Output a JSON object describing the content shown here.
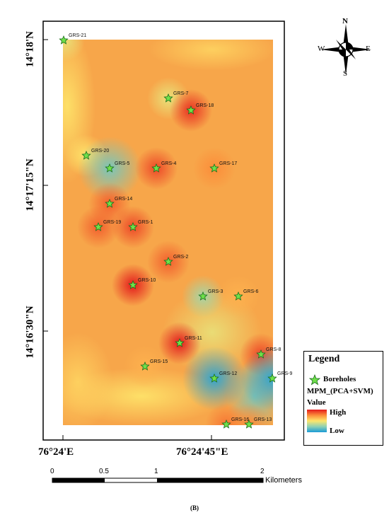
{
  "map": {
    "boreholes": [
      {
        "id": "GRS-21",
        "value": 0.45
      },
      {
        "id": "GRS-7",
        "value": 0.45
      },
      {
        "id": "GRS-18",
        "value": 0.95
      },
      {
        "id": "GRS-20",
        "value": 0.5
      },
      {
        "id": "GRS-5",
        "value": 0.2
      },
      {
        "id": "GRS-4",
        "value": 0.9
      },
      {
        "id": "GRS-17",
        "value": 0.75
      },
      {
        "id": "GRS-14",
        "value": 0.85
      },
      {
        "id": "GRS-19",
        "value": 0.85
      },
      {
        "id": "GRS-1",
        "value": 0.9
      },
      {
        "id": "GRS-2",
        "value": 0.85
      },
      {
        "id": "GRS-10",
        "value": 1.0
      },
      {
        "id": "GRS-3",
        "value": 0.3
      },
      {
        "id": "GRS-6",
        "value": 0.65
      },
      {
        "id": "GRS-11",
        "value": 1.0
      },
      {
        "id": "GRS-8",
        "value": 0.9
      },
      {
        "id": "GRS-15",
        "value": 0.65
      },
      {
        "id": "GRS-12",
        "value": 0.05
      },
      {
        "id": "GRS-9",
        "value": 0.05
      },
      {
        "id": "GRS-16",
        "value": 0.8
      },
      {
        "id": "GRS-13",
        "value": 0.75
      }
    ],
    "lat_labels": [
      "14°18'N",
      "14°17'15\"N",
      "14°16'30\"N"
    ],
    "lon_labels": [
      "76°24'E",
      "76°24'45\"E"
    ]
  },
  "compass": {
    "n": "N",
    "s": "S",
    "e": "E",
    "w": "W"
  },
  "legend": {
    "title": "Legend",
    "boreholes_label": "Boreholes",
    "layer_name": "MPM_(PCA+SVM)",
    "value_label": "Value",
    "high_label": "High",
    "low_label": "Low",
    "colors": {
      "high": "#e31a1c",
      "low": "#1a9bd7"
    }
  },
  "scale_bar": {
    "ticks": [
      "0",
      "0.5",
      "1",
      "2"
    ],
    "unit": "Kilometers"
  },
  "caption": "(B)"
}
